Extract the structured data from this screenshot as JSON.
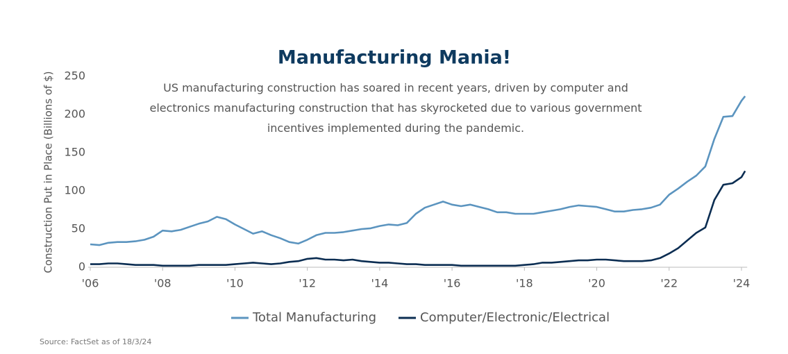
{
  "chart_data": {
    "type": "line",
    "title": "Manufacturing Mania!",
    "subtitle": "US manufacturing construction has soared in recent years, driven by computer and electronics manufacturing construction that has skyrocketed due to various government incentives implemented during the pandemic.",
    "y_label": "Construction Put in Place (Billions of $)",
    "source": "Source: FactSet as of 18/3/24",
    "x": [
      2006,
      2006.25,
      2006.5,
      2006.75,
      2007,
      2007.25,
      2007.5,
      2007.75,
      2008,
      2008.25,
      2008.5,
      2008.75,
      2009,
      2009.25,
      2009.5,
      2009.75,
      2010,
      2010.25,
      2010.5,
      2010.75,
      2011,
      2011.25,
      2011.5,
      2011.75,
      2012,
      2012.25,
      2012.5,
      2012.75,
      2013,
      2013.25,
      2013.5,
      2013.75,
      2014,
      2014.25,
      2014.5,
      2014.75,
      2015,
      2015.25,
      2015.5,
      2015.75,
      2016,
      2016.25,
      2016.5,
      2016.75,
      2017,
      2017.25,
      2017.5,
      2017.75,
      2018,
      2018.25,
      2018.5,
      2018.75,
      2019,
      2019.25,
      2019.5,
      2019.75,
      2020,
      2020.25,
      2020.5,
      2020.75,
      2021,
      2021.25,
      2021.5,
      2021.75,
      2022,
      2022.25,
      2022.5,
      2022.75,
      2023,
      2023.25,
      2023.5,
      2023.75,
      2024,
      2024.1
    ],
    "series": [
      {
        "name": "Total Manufacturing",
        "color": "#5b94bf",
        "values": [
          30,
          29,
          32,
          33,
          33,
          34,
          36,
          40,
          48,
          47,
          49,
          53,
          57,
          60,
          66,
          63,
          56,
          50,
          44,
          47,
          42,
          38,
          33,
          31,
          36,
          42,
          45,
          45,
          46,
          48,
          50,
          51,
          54,
          56,
          55,
          58,
          70,
          78,
          82,
          86,
          82,
          80,
          82,
          79,
          76,
          72,
          72,
          70,
          70,
          70,
          72,
          74,
          76,
          79,
          81,
          80,
          79,
          76,
          73,
          73,
          75,
          76,
          78,
          82,
          95,
          103,
          112,
          120,
          132,
          168,
          197,
          198,
          218,
          224
        ]
      },
      {
        "name": "Computer/Electronic/Electrical",
        "color": "#0b2d52",
        "values": [
          4,
          4,
          5,
          5,
          4,
          3,
          3,
          3,
          2,
          2,
          2,
          2,
          3,
          3,
          3,
          3,
          4,
          5,
          6,
          5,
          4,
          5,
          7,
          8,
          11,
          12,
          10,
          10,
          9,
          10,
          8,
          7,
          6,
          6,
          5,
          4,
          4,
          3,
          3,
          3,
          3,
          2,
          2,
          2,
          2,
          2,
          2,
          2,
          3,
          4,
          6,
          6,
          7,
          8,
          9,
          9,
          10,
          10,
          9,
          8,
          8,
          8,
          9,
          12,
          18,
          25,
          35,
          45,
          52,
          88,
          108,
          110,
          118,
          126
        ]
      }
    ],
    "xlim": [
      2006,
      2024.1
    ],
    "xticks": [
      {
        "value": 2006,
        "label": "'06"
      },
      {
        "value": 2008,
        "label": "'08"
      },
      {
        "value": 2010,
        "label": "'10"
      },
      {
        "value": 2012,
        "label": "'12"
      },
      {
        "value": 2014,
        "label": "'14"
      },
      {
        "value": 2016,
        "label": "'16"
      },
      {
        "value": 2018,
        "label": "'18"
      },
      {
        "value": 2020,
        "label": "'20"
      },
      {
        "value": 2022,
        "label": "'22"
      },
      {
        "value": 2024,
        "label": "'24"
      }
    ],
    "ylim": [
      0,
      250
    ],
    "yticks": [
      0,
      50,
      100,
      150,
      200,
      250
    ]
  }
}
